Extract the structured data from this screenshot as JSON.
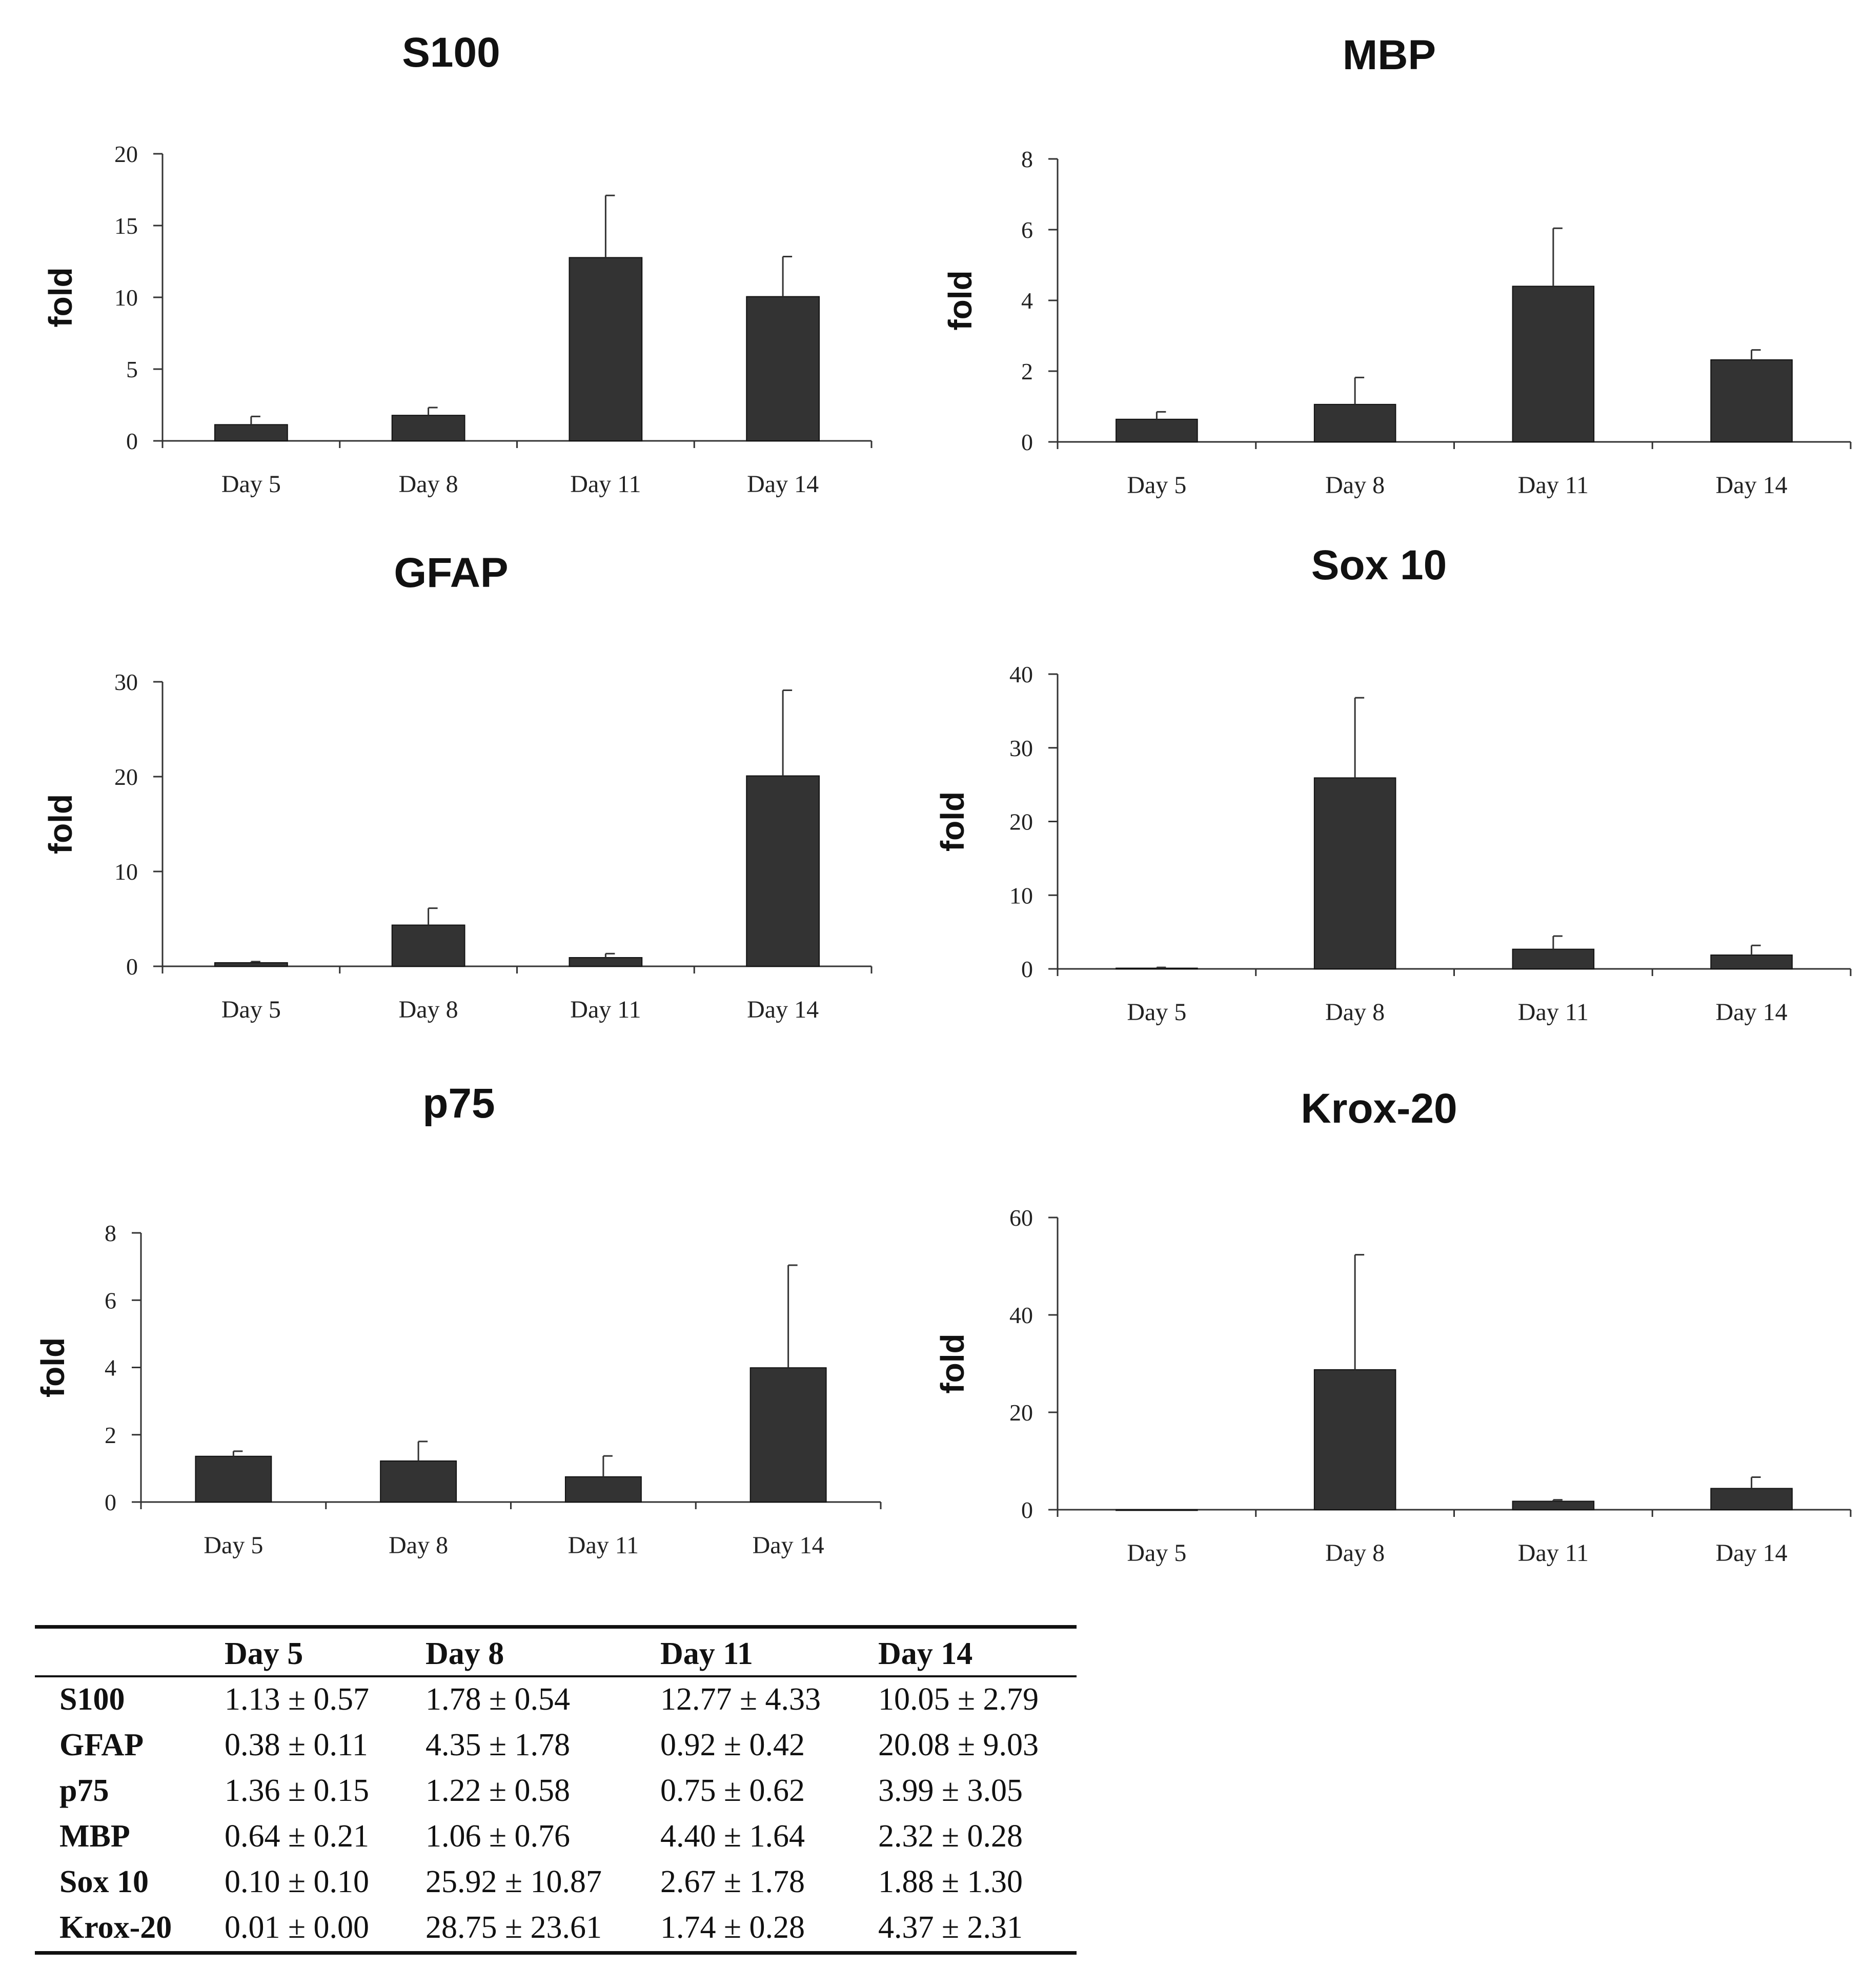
{
  "chart_data": [
    {
      "type": "bar",
      "title": "S100",
      "ylabel": "fold",
      "categories": [
        "Day 5",
        "Day 8",
        "Day 11",
        "Day 14"
      ],
      "ylim": [
        0,
        20
      ],
      "yticks": [
        0,
        5,
        10,
        15,
        20
      ],
      "values": [
        1.13,
        1.78,
        12.77,
        10.05
      ],
      "errors": [
        0.57,
        0.54,
        4.33,
        2.79
      ]
    },
    {
      "type": "bar",
      "title": "MBP",
      "ylabel": "fold",
      "categories": [
        "Day 5",
        "Day 8",
        "Day 11",
        "Day 14"
      ],
      "ylim": [
        0,
        8
      ],
      "yticks": [
        0,
        2,
        4,
        6,
        8
      ],
      "values": [
        0.64,
        1.06,
        4.4,
        2.32
      ],
      "errors": [
        0.21,
        0.76,
        1.64,
        0.28
      ]
    },
    {
      "type": "bar",
      "title": "GFAP",
      "ylabel": "fold",
      "categories": [
        "Day 5",
        "Day 8",
        "Day 11",
        "Day 14"
      ],
      "ylim": [
        0,
        30
      ],
      "yticks": [
        0,
        10,
        20,
        30
      ],
      "values": [
        0.38,
        4.35,
        0.92,
        20.08
      ],
      "errors": [
        0.11,
        1.78,
        0.42,
        9.03
      ]
    },
    {
      "type": "bar",
      "title": "Sox 10",
      "ylabel": "fold",
      "categories": [
        "Day 5",
        "Day 8",
        "Day 11",
        "Day 14"
      ],
      "ylim": [
        0,
        40
      ],
      "yticks": [
        0,
        10,
        20,
        30,
        40
      ],
      "values": [
        0.1,
        25.92,
        2.67,
        1.88
      ],
      "errors": [
        0.1,
        10.87,
        1.78,
        1.3
      ]
    },
    {
      "type": "bar",
      "title": "p75",
      "ylabel": "fold",
      "categories": [
        "Day 5",
        "Day 8",
        "Day 11",
        "Day 14"
      ],
      "ylim": [
        0,
        8
      ],
      "yticks": [
        0,
        2,
        4,
        6,
        8
      ],
      "values": [
        1.36,
        1.22,
        0.75,
        3.99
      ],
      "errors": [
        0.15,
        0.58,
        0.62,
        3.05
      ]
    },
    {
      "type": "bar",
      "title": "Krox-20",
      "ylabel": "fold",
      "categories": [
        "Day 5",
        "Day 8",
        "Day 11",
        "Day 14"
      ],
      "ylim": [
        0,
        60
      ],
      "yticks": [
        0,
        20,
        40,
        60
      ],
      "values": [
        0.01,
        28.75,
        1.74,
        4.37
      ],
      "errors": [
        0.0,
        23.61,
        0.28,
        2.31
      ]
    }
  ],
  "table": {
    "headers": [
      "",
      "Day 5",
      "Day 8",
      "Day 11",
      "Day 14"
    ],
    "rows": [
      {
        "label": "S100",
        "cells": [
          "1.13 ± 0.57",
          "1.78 ± 0.54",
          "12.77 ± 4.33",
          "10.05 ± 2.79"
        ]
      },
      {
        "label": "GFAP",
        "cells": [
          "0.38 ± 0.11",
          "4.35 ± 1.78",
          "0.92 ± 0.42",
          "20.08 ± 9.03"
        ]
      },
      {
        "label": "p75",
        "cells": [
          "1.36 ± 0.15",
          "1.22 ± 0.58",
          "0.75 ± 0.62",
          "3.99 ± 3.05"
        ]
      },
      {
        "label": "MBP",
        "cells": [
          "0.64 ± 0.21",
          "1.06 ± 0.76",
          "4.40 ± 1.64",
          "2.32 ± 0.28"
        ]
      },
      {
        "label": "Sox 10",
        "cells": [
          "0.10 ± 0.10",
          "25.92 ± 10.87",
          "2.67 ± 1.78",
          "1.88 ± 1.30"
        ]
      },
      {
        "label": "Krox-20",
        "cells": [
          "0.01 ± 0.00",
          "28.75 ± 23.61",
          "1.74 ± 0.28",
          "4.37 ± 2.31"
        ]
      }
    ]
  }
}
